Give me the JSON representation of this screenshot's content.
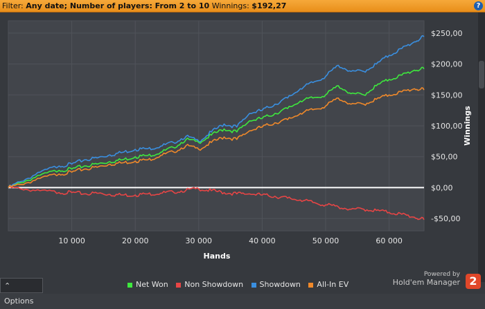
{
  "filter": {
    "prefix": "Filter:",
    "text": "Any date; Number of players: From 2 to 10",
    "winnings_label": "Winnings:",
    "winnings_value": "$192,27",
    "help_glyph": "?"
  },
  "options_label": "Options",
  "branding": {
    "powered_by": "Powered by",
    "name": "Hold'em Manager",
    "logo_glyph": "2"
  },
  "chart_data": {
    "type": "line",
    "xlabel": "Hands",
    "ylabel": "Winnings",
    "xlim": [
      0,
      65500
    ],
    "ylim": [
      -70,
      270
    ],
    "x_ticks": [
      10000,
      20000,
      30000,
      40000,
      50000,
      60000
    ],
    "x_tick_labels": [
      "10 000",
      "20 000",
      "30 000",
      "40 000",
      "50 000",
      "60 000"
    ],
    "y_ticks": [
      -50,
      0,
      50,
      100,
      150,
      200,
      250
    ],
    "y_tick_labels": [
      "-$50,00",
      "$0,00",
      "$50,00",
      "$100,00",
      "$150,00",
      "$200,00",
      "$250,00"
    ],
    "zero_line": true,
    "grid": true,
    "legend_position": "bottom",
    "series": [
      {
        "name": "Net Won",
        "color": "#3ee83e",
        "x": [
          0,
          2000,
          5000,
          8000,
          10000,
          12000,
          14000,
          16000,
          18000,
          20000,
          22000,
          24000,
          26000,
          28000,
          30000,
          32000,
          34000,
          36000,
          38000,
          40000,
          42000,
          44000,
          46000,
          48000,
          50000,
          52000,
          54000,
          56000,
          58000,
          60000,
          62000,
          64000,
          65500
        ],
        "y": [
          0,
          8,
          20,
          28,
          30,
          35,
          38,
          42,
          45,
          50,
          52,
          57,
          65,
          78,
          73,
          85,
          95,
          90,
          108,
          112,
          120,
          128,
          140,
          145,
          150,
          165,
          152,
          150,
          165,
          175,
          182,
          190,
          192
        ]
      },
      {
        "name": "Non Showdown",
        "color": "#e84545",
        "x": [
          0,
          2000,
          5000,
          8000,
          10000,
          12000,
          14000,
          16000,
          18000,
          20000,
          22000,
          24000,
          26000,
          28000,
          30000,
          32000,
          34000,
          36000,
          38000,
          40000,
          42000,
          44000,
          46000,
          48000,
          50000,
          52000,
          54000,
          56000,
          58000,
          60000,
          62000,
          64000,
          65500
        ],
        "y": [
          0,
          -2,
          -5,
          -8,
          -8,
          -10,
          -9,
          -11,
          -12,
          -12,
          -10,
          -9,
          -7,
          -4,
          -2,
          -5,
          -8,
          -10,
          -10,
          -12,
          -14,
          -17,
          -20,
          -24,
          -28,
          -31,
          -35,
          -35,
          -37,
          -40,
          -43,
          -48,
          -52
        ]
      },
      {
        "name": "Showdown",
        "color": "#3a8fe0",
        "x": [
          0,
          2000,
          5000,
          8000,
          10000,
          12000,
          14000,
          16000,
          18000,
          20000,
          22000,
          24000,
          26000,
          28000,
          30000,
          32000,
          34000,
          36000,
          38000,
          40000,
          42000,
          44000,
          46000,
          48000,
          50000,
          52000,
          54000,
          56000,
          58000,
          60000,
          62000,
          64000,
          65500
        ],
        "y": [
          0,
          10,
          25,
          35,
          38,
          45,
          48,
          53,
          57,
          62,
          63,
          67,
          73,
          83,
          75,
          90,
          103,
          98,
          120,
          125,
          135,
          145,
          160,
          170,
          180,
          198,
          188,
          188,
          200,
          214,
          225,
          236,
          244
        ]
      },
      {
        "name": "All-In EV",
        "color": "#f0892a",
        "x": [
          0,
          2000,
          5000,
          8000,
          10000,
          12000,
          14000,
          16000,
          18000,
          20000,
          22000,
          24000,
          26000,
          28000,
          30000,
          32000,
          34000,
          36000,
          38000,
          40000,
          42000,
          44000,
          46000,
          48000,
          50000,
          52000,
          54000,
          56000,
          58000,
          60000,
          62000,
          64000,
          65500
        ],
        "y": [
          0,
          5,
          15,
          22,
          25,
          30,
          33,
          38,
          40,
          43,
          45,
          52,
          58,
          68,
          62,
          73,
          82,
          78,
          92,
          98,
          105,
          110,
          120,
          126,
          132,
          145,
          135,
          135,
          143,
          150,
          155,
          160,
          158
        ]
      }
    ]
  }
}
